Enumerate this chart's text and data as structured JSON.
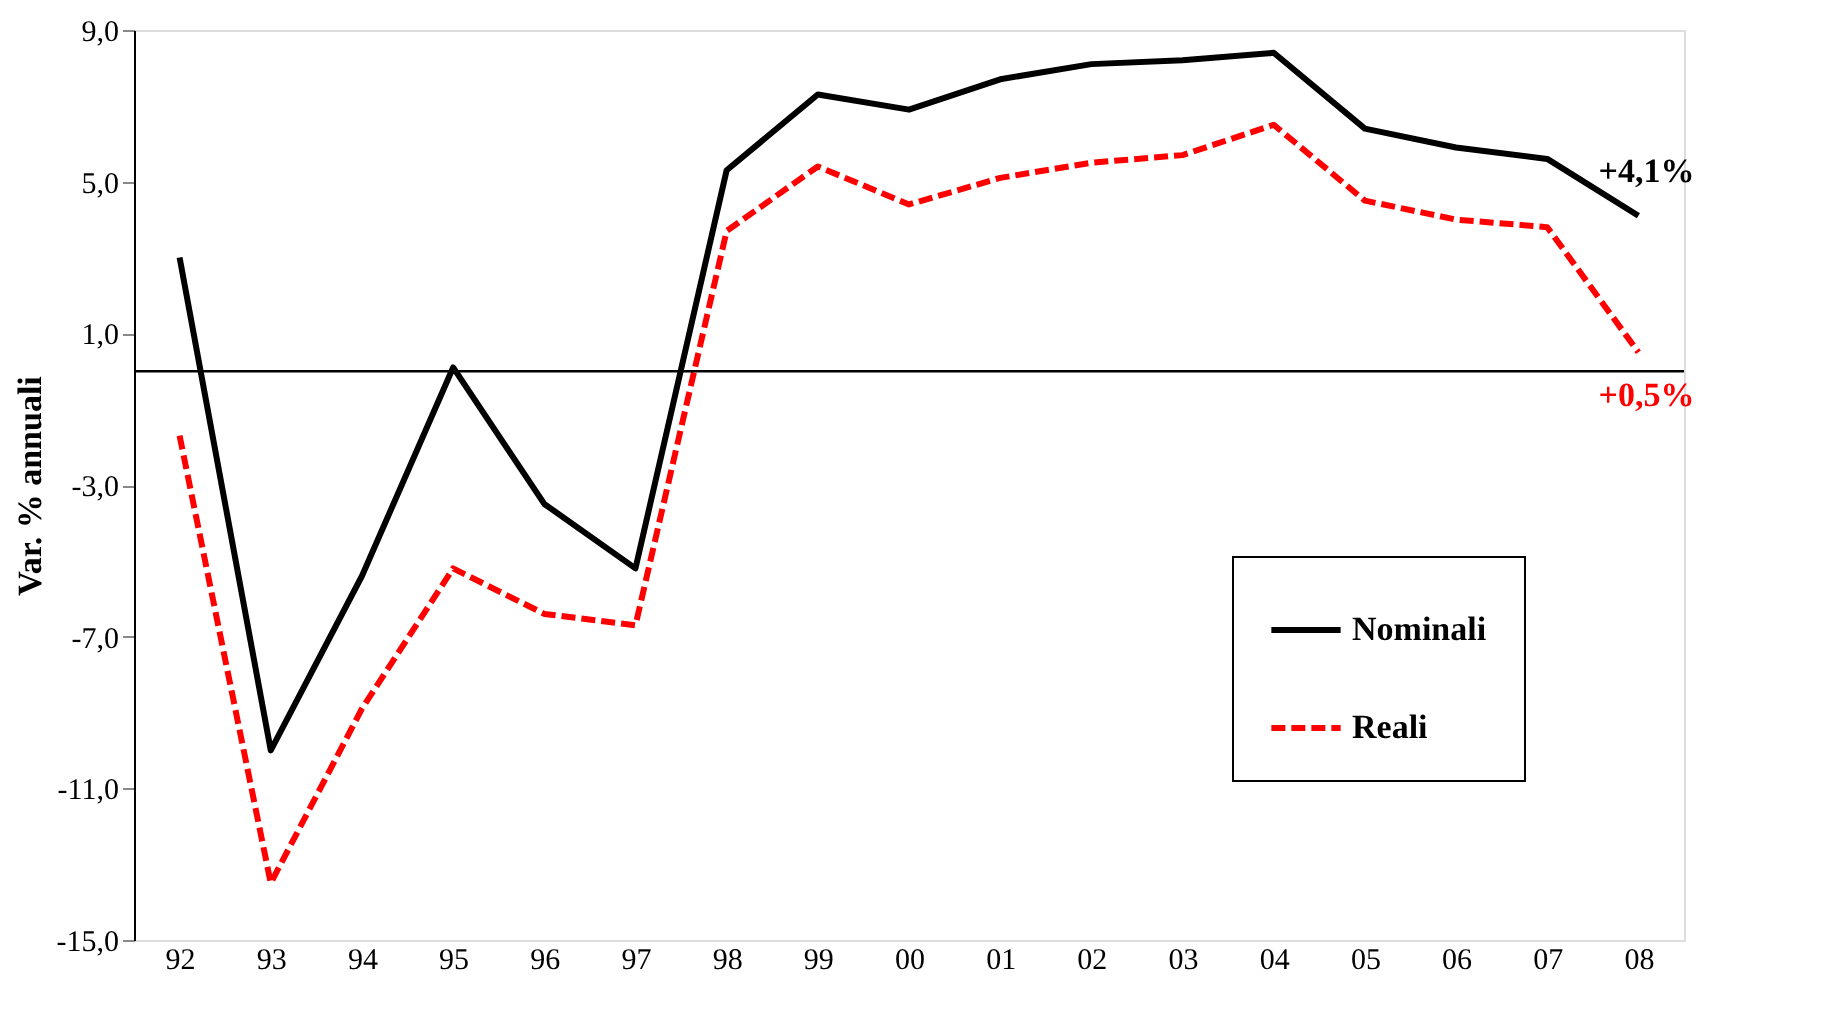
{
  "chart_data": {
    "type": "line",
    "ylabel": "Var. % annuali",
    "categories": [
      "92",
      "93",
      "94",
      "95",
      "96",
      "97",
      "98",
      "99",
      "00",
      "01",
      "02",
      "03",
      "04",
      "05",
      "06",
      "07",
      "08"
    ],
    "series": [
      {
        "name": "Nominali",
        "color": "#000000",
        "line_style": "solid",
        "values": [
          3.0,
          -10.0,
          -5.4,
          0.1,
          -3.5,
          -5.2,
          5.3,
          7.3,
          6.9,
          7.7,
          8.1,
          8.2,
          8.4,
          6.4,
          5.9,
          5.6,
          4.1
        ]
      },
      {
        "name": "Reali",
        "color": "#ff0000",
        "line_style": "dashed",
        "values": [
          -1.7,
          -13.5,
          -8.9,
          -5.2,
          -6.4,
          -6.7,
          3.7,
          5.4,
          4.4,
          5.1,
          5.5,
          5.7,
          6.5,
          4.5,
          4.0,
          3.8,
          0.5
        ]
      }
    ],
    "ylim": [
      -15,
      9
    ],
    "yticks": [
      {
        "value": 9,
        "label": "9,0"
      },
      {
        "value": 5,
        "label": "5,0"
      },
      {
        "value": 1,
        "label": "1,0"
      },
      {
        "value": -3,
        "label": "-3,0"
      },
      {
        "value": -7,
        "label": "-7,0"
      },
      {
        "value": -11,
        "label": "-11,0"
      },
      {
        "value": -15,
        "label": "-15,0"
      }
    ],
    "ref_lines": [
      {
        "axis": "y",
        "value": 0,
        "color": "#000000"
      }
    ],
    "annotations": [
      {
        "text": "+4,1%",
        "x": "08",
        "y": 4.1
      },
      {
        "text": "+0,5%",
        "x": "08",
        "y": 0.5
      }
    ],
    "grid": false,
    "legend": "bottom right",
    "marker": "none"
  }
}
